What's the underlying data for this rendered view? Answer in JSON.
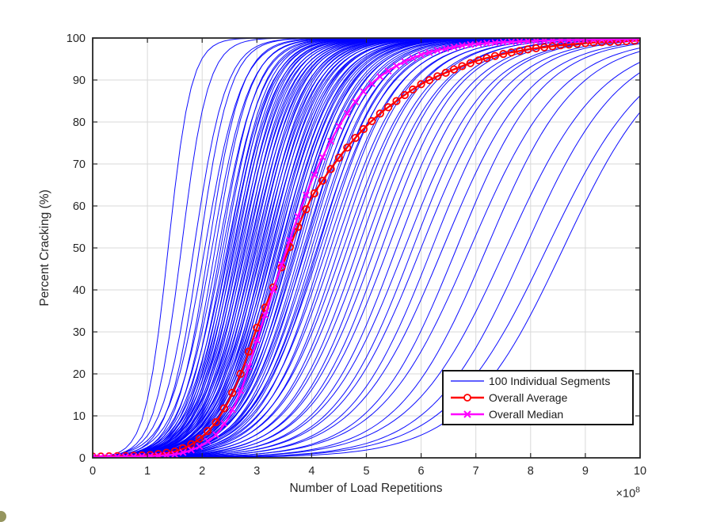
{
  "chart_data": {
    "type": "line",
    "title": "",
    "xlabel": "Number of Load Repetitions",
    "ylabel": "Percent Cracking (%)",
    "x_multiplier": {
      "prefix": "×10",
      "exponent": "8"
    },
    "xlim": [
      0,
      10
    ],
    "ylim": [
      0,
      100
    ],
    "xticks": [
      0,
      1,
      2,
      3,
      4,
      5,
      6,
      7,
      8,
      9,
      10
    ],
    "yticks": [
      0,
      10,
      20,
      30,
      40,
      50,
      60,
      70,
      80,
      90,
      100
    ],
    "grid": true,
    "legend": {
      "position": "south-east",
      "entries": [
        {
          "label": "100 Individual Segments",
          "color": "#0000ff",
          "marker": "none"
        },
        {
          "label": "Overall Average",
          "color": "#ff0000",
          "marker": "circle"
        },
        {
          "label": "Overall Median",
          "color": "#ff00ff",
          "marker": "x"
        }
      ]
    },
    "series": {
      "segments": {
        "name": "100 Individual Segments",
        "color": "#0000ff",
        "model": "logistic: y = 100/(1+exp(-k*(x-x50))), x in 1e8 repetitions",
        "params_x50_k": [
          [
            1.38,
            4.8
          ],
          [
            1.62,
            4.1
          ],
          [
            1.85,
            3.4
          ],
          [
            1.95,
            3.5
          ],
          [
            2.05,
            3.0
          ],
          [
            2.12,
            3.3
          ],
          [
            2.18,
            2.9
          ],
          [
            2.24,
            3.1
          ],
          [
            2.3,
            2.8
          ],
          [
            2.34,
            3.0
          ],
          [
            2.38,
            2.7
          ],
          [
            2.42,
            2.9
          ],
          [
            2.46,
            2.6
          ],
          [
            2.48,
            2.85
          ],
          [
            2.5,
            2.6
          ],
          [
            2.53,
            2.8
          ],
          [
            2.56,
            2.5
          ],
          [
            2.58,
            2.75
          ],
          [
            2.6,
            2.5
          ],
          [
            2.63,
            2.7
          ],
          [
            2.66,
            2.45
          ],
          [
            2.68,
            2.65
          ],
          [
            2.7,
            2.4
          ],
          [
            2.73,
            2.6
          ],
          [
            2.76,
            2.35
          ],
          [
            2.78,
            2.55
          ],
          [
            2.8,
            2.3
          ],
          [
            2.83,
            2.5
          ],
          [
            2.86,
            2.3
          ],
          [
            2.88,
            2.45
          ],
          [
            2.9,
            2.25
          ],
          [
            2.93,
            2.4
          ],
          [
            2.96,
            2.2
          ],
          [
            2.98,
            2.4
          ],
          [
            3.0,
            2.2
          ],
          [
            3.03,
            2.35
          ],
          [
            3.06,
            2.15
          ],
          [
            3.08,
            2.3
          ],
          [
            3.1,
            2.1
          ],
          [
            3.13,
            2.3
          ],
          [
            3.16,
            2.1
          ],
          [
            3.18,
            2.25
          ],
          [
            3.2,
            2.05
          ],
          [
            3.23,
            2.2
          ],
          [
            3.26,
            2.0
          ],
          [
            3.28,
            2.15
          ],
          [
            3.3,
            2.0
          ],
          [
            3.34,
            2.1
          ],
          [
            3.36,
            1.95
          ],
          [
            3.38,
            2.1
          ],
          [
            3.42,
            1.95
          ],
          [
            3.44,
            2.05
          ],
          [
            3.46,
            1.9
          ],
          [
            3.5,
            2.0
          ],
          [
            3.52,
            1.9
          ],
          [
            3.54,
            2.0
          ],
          [
            3.58,
            1.85
          ],
          [
            3.6,
            1.95
          ],
          [
            3.62,
            1.85
          ],
          [
            3.66,
            1.95
          ],
          [
            3.7,
            1.8
          ],
          [
            3.72,
            1.9
          ],
          [
            3.75,
            1.8
          ],
          [
            3.8,
            1.85
          ],
          [
            3.85,
            1.75
          ],
          [
            3.88,
            1.85
          ],
          [
            3.9,
            1.7
          ],
          [
            3.95,
            1.8
          ],
          [
            4.0,
            1.7
          ],
          [
            4.05,
            1.75
          ],
          [
            4.1,
            1.65
          ],
          [
            4.12,
            1.72
          ],
          [
            4.16,
            1.6
          ],
          [
            4.22,
            1.7
          ],
          [
            4.28,
            1.58
          ],
          [
            4.35,
            1.65
          ],
          [
            4.42,
            1.55
          ],
          [
            4.5,
            1.6
          ],
          [
            4.58,
            1.5
          ],
          [
            4.66,
            1.55
          ],
          [
            4.75,
            1.48
          ],
          [
            4.85,
            1.52
          ],
          [
            4.95,
            1.45
          ],
          [
            5.05,
            1.5
          ],
          [
            5.16,
            1.42
          ],
          [
            5.28,
            1.45
          ],
          [
            5.4,
            1.38
          ],
          [
            5.55,
            1.4
          ],
          [
            5.7,
            1.33
          ],
          [
            5.85,
            1.36
          ],
          [
            6.0,
            1.3
          ],
          [
            6.2,
            1.32
          ],
          [
            6.4,
            1.25
          ],
          [
            6.65,
            1.28
          ],
          [
            6.9,
            1.2
          ],
          [
            7.2,
            1.22
          ],
          [
            7.55,
            1.14
          ],
          [
            7.9,
            1.15
          ],
          [
            8.3,
            1.08
          ],
          [
            8.6,
            1.1
          ]
        ]
      },
      "average": {
        "name": "Overall Average",
        "color": "#ff0000",
        "marker": "circle",
        "x_start": 0,
        "x_step": 0.25,
        "values": [
          0.3,
          0.35,
          0.4,
          0.5,
          0.6,
          1.0,
          1.5,
          2.8,
          5,
          8.5,
          14,
          21.5,
          31,
          39,
          47,
          55,
          62,
          67,
          71.5,
          75.5,
          79,
          82,
          84.5,
          86.9,
          89,
          90.6,
          92,
          93.3,
          94.5,
          95.4,
          96.2,
          96.8,
          97.4,
          97.8,
          98.2,
          98.5,
          98.8,
          99.0,
          99.1,
          99.25,
          99.4
        ]
      },
      "median": {
        "name": "Overall Median",
        "color": "#ff00ff",
        "marker": "x",
        "x_start": 0,
        "x_step": 0.25,
        "values": [
          0.2,
          0.22,
          0.25,
          0.3,
          0.4,
          0.55,
          0.8,
          1.6,
          3,
          5.5,
          10,
          17.5,
          28,
          38,
          48,
          57.5,
          66,
          73,
          79,
          84,
          88,
          90.8,
          93,
          94.7,
          96,
          96.9,
          97.6,
          98.2,
          98.6,
          98.8,
          99.0,
          99.15,
          99.3,
          99.4,
          99.5,
          99.55,
          99.6,
          99.65,
          99.7,
          99.75,
          99.8
        ]
      }
    },
    "style": {
      "grid_color": "#d9d9d9",
      "axis_color": "#262626",
      "text_color": "#262626",
      "legend_border_color": "#141414",
      "background": "#ffffff"
    }
  }
}
